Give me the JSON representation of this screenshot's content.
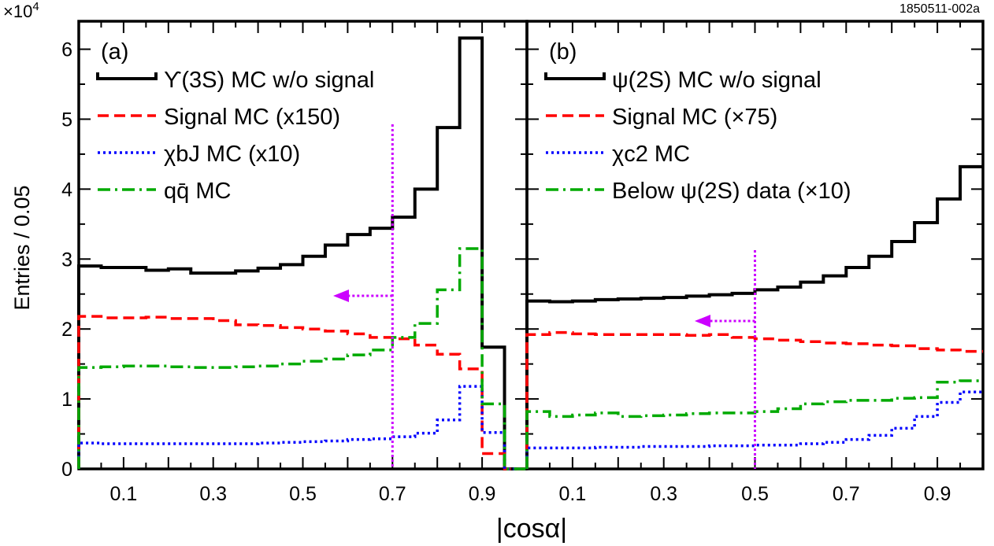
{
  "figure": {
    "scale_note": "×10",
    "scale_exponent": "4",
    "figure_id": "1850511-002a",
    "xlabel": "|cosα|",
    "ylabel": "Entries / 0.05",
    "yticks": [
      "0",
      "1",
      "2",
      "3",
      "4",
      "5",
      "6"
    ],
    "xtick_labels_a": [
      "0.1",
      "0.3",
      "0.5",
      "0.7",
      "0.9"
    ],
    "xtick_labels_b": [
      "0.1",
      "0.3",
      "0.5",
      "0.7",
      "0.9"
    ]
  },
  "colors": {
    "bkg": "#000000",
    "signal": "#ff0000",
    "chi": "#0000ff",
    "third": "#00aa00",
    "cut": "#cc00ff"
  },
  "chart_data": [
    {
      "type": "line",
      "step": true,
      "panel": "(a)",
      "x_bin_edges": [
        0,
        0.05,
        0.1,
        0.15,
        0.2,
        0.25,
        0.3,
        0.35,
        0.4,
        0.45,
        0.5,
        0.55,
        0.6,
        0.65,
        0.7,
        0.75,
        0.8,
        0.85,
        0.9,
        0.95,
        1.0
      ],
      "xlim": [
        0,
        1
      ],
      "ylim": [
        0,
        6.4
      ],
      "y_unit": "×10^4",
      "cut_value": 0.7,
      "cut_direction": "<",
      "series": [
        {
          "name": "ϒ(3S) MC w/o signal",
          "color": "#000000",
          "style": "solid",
          "values": [
            2.9,
            2.88,
            2.88,
            2.84,
            2.86,
            2.8,
            2.8,
            2.83,
            2.87,
            2.92,
            3.04,
            3.2,
            3.35,
            3.44,
            3.6,
            4.0,
            4.88,
            6.16,
            1.74,
            0
          ]
        },
        {
          "name": "Signal MC (x150)",
          "color": "#ff0000",
          "style": "dashed",
          "values": [
            2.18,
            2.16,
            2.16,
            2.17,
            2.15,
            2.15,
            2.12,
            2.06,
            2.05,
            2.02,
            2.0,
            1.97,
            1.93,
            1.88,
            1.86,
            1.77,
            1.64,
            1.43,
            0.22,
            0
          ]
        },
        {
          "name": "χbJ MC (x10)",
          "color": "#0000ff",
          "style": "dotted",
          "values": [
            0.37,
            0.36,
            0.36,
            0.36,
            0.36,
            0.36,
            0.36,
            0.36,
            0.37,
            0.38,
            0.39,
            0.4,
            0.42,
            0.43,
            0.46,
            0.51,
            0.7,
            1.18,
            0.52,
            0
          ]
        },
        {
          "name": "qq̄ MC",
          "color": "#00aa00",
          "style": "dashdot",
          "values": [
            1.45,
            1.46,
            1.47,
            1.47,
            1.46,
            1.45,
            1.45,
            1.46,
            1.47,
            1.5,
            1.54,
            1.57,
            1.63,
            1.7,
            1.88,
            2.08,
            2.56,
            3.15,
            0.93,
            0
          ]
        }
      ]
    },
    {
      "type": "line",
      "step": true,
      "panel": "(b)",
      "x_bin_edges": [
        0,
        0.05,
        0.1,
        0.15,
        0.2,
        0.25,
        0.3,
        0.35,
        0.4,
        0.45,
        0.5,
        0.55,
        0.6,
        0.65,
        0.7,
        0.75,
        0.8,
        0.85,
        0.9,
        0.95,
        1.0
      ],
      "xlim": [
        0,
        1
      ],
      "ylim": [
        0,
        6.4
      ],
      "y_unit": "×10^4",
      "cut_value": 0.5,
      "cut_direction": "<",
      "series": [
        {
          "name": "ψ(2S) MC w/o signal",
          "color": "#000000",
          "style": "solid",
          "values": [
            2.4,
            2.39,
            2.4,
            2.42,
            2.43,
            2.44,
            2.45,
            2.47,
            2.49,
            2.51,
            2.56,
            2.6,
            2.67,
            2.76,
            2.88,
            3.04,
            3.25,
            3.52,
            3.86,
            4.32
          ]
        },
        {
          "name": "Signal MC (×75)",
          "color": "#ff0000",
          "style": "dashed",
          "values": [
            1.92,
            1.95,
            1.93,
            1.92,
            1.92,
            1.92,
            1.92,
            1.91,
            1.92,
            1.88,
            1.86,
            1.84,
            1.82,
            1.8,
            1.79,
            1.77,
            1.76,
            1.72,
            1.7,
            1.68
          ]
        },
        {
          "name": "χc2 MC",
          "color": "#0000ff",
          "style": "dotted",
          "values": [
            0.3,
            0.3,
            0.3,
            0.31,
            0.31,
            0.32,
            0.32,
            0.32,
            0.33,
            0.33,
            0.34,
            0.34,
            0.36,
            0.38,
            0.42,
            0.48,
            0.58,
            0.75,
            0.95,
            1.1
          ]
        },
        {
          "name": "Below ψ(2S) data (×10)",
          "color": "#00aa00",
          "style": "dashdot",
          "values": [
            0.82,
            0.75,
            0.77,
            0.8,
            0.75,
            0.76,
            0.77,
            0.79,
            0.8,
            0.8,
            0.82,
            0.86,
            0.93,
            0.96,
            0.98,
            0.98,
            1.01,
            1.02,
            1.24,
            1.26
          ]
        }
      ]
    }
  ]
}
